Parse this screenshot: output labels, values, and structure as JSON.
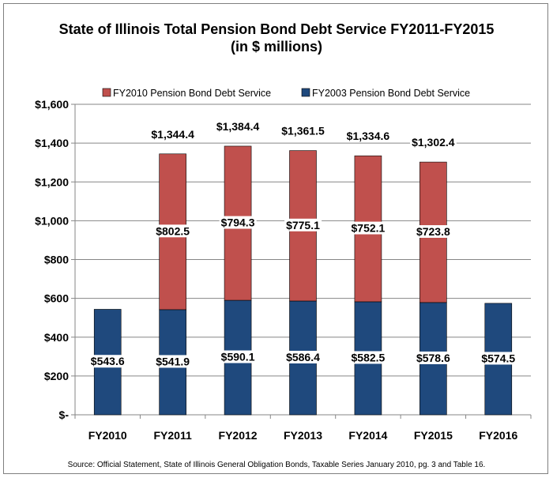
{
  "title_line1": "State of Illinois Total Pension Bond Debt Service FY2011-FY2015",
  "title_line2": "(in $ millions)",
  "source": "Source: Official Statement, State of Illinois General Obligation Bonds, Taxable Series January 2010, pg. 3 and Table 16.",
  "colors": {
    "fy2003": "#1f497d",
    "fy2010": "#c0504d",
    "grid": "#868686"
  },
  "chart_data": {
    "type": "bar",
    "stacked": true,
    "categories": [
      "FY2010",
      "FY2011",
      "FY2012",
      "FY2013",
      "FY2014",
      "FY2015",
      "FY2016"
    ],
    "series": [
      {
        "name": "FY2003 Pension Bond Debt Service",
        "values": [
          543.6,
          541.9,
          590.1,
          586.4,
          582.5,
          578.6,
          574.5
        ],
        "labels": [
          "$543.6",
          "$541.9",
          "$590.1",
          "$586.4",
          "$582.5",
          "$578.6",
          "$574.5"
        ]
      },
      {
        "name": "FY2010 Pension Bond Debt Service",
        "values": [
          0,
          802.5,
          794.3,
          775.1,
          752.1,
          723.8,
          0
        ],
        "labels": [
          "",
          "$802.5",
          "$794.3",
          "$775.1",
          "$752.1",
          "$723.8",
          ""
        ]
      }
    ],
    "totals": [
      "",
      "$1,344.4",
      "$1,384.4",
      "$1,361.5",
      "$1,334.6",
      "$1,302.4",
      ""
    ],
    "ylim": [
      0,
      1600
    ],
    "yticks": [
      0,
      200,
      400,
      600,
      800,
      1000,
      1200,
      1400,
      1600
    ],
    "ytick_labels": [
      "$-",
      "$200",
      "$400",
      "$600",
      "$800",
      "$1,000",
      "$1,200",
      "$1,400",
      "$1,600"
    ],
    "grid": true,
    "legend_position": "top"
  }
}
